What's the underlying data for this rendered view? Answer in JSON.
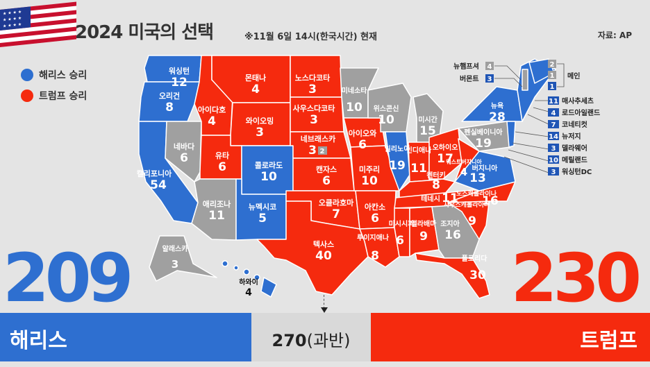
{
  "title": "2024 미국의 선택",
  "subtitle": "※11월 6일 14시(한국시간) 현재",
  "source": "자료: AP",
  "legend": {
    "harris": "해리스 승리",
    "trump": "트럼프 승리"
  },
  "harris": {
    "name": "해리스",
    "total": "209"
  },
  "trump": {
    "name": "트럼프",
    "total": "230"
  },
  "threshold": {
    "value": "270",
    "label": "(과반)"
  },
  "colors": {
    "harris": "#2e6fd0",
    "trump": "#f52a0e",
    "undecided": "#a0a0a0"
  },
  "states": [
    {
      "name": "워싱턴",
      "votes": "12",
      "winner": "harris"
    },
    {
      "name": "오리건",
      "votes": "8",
      "winner": "harris"
    },
    {
      "name": "캘리포니아",
      "votes": "54",
      "winner": "harris"
    },
    {
      "name": "네바다",
      "votes": "6",
      "winner": "undecided"
    },
    {
      "name": "아이다호",
      "votes": "4",
      "winner": "trump"
    },
    {
      "name": "몬태나",
      "votes": "4",
      "winner": "trump"
    },
    {
      "name": "와이오밍",
      "votes": "3",
      "winner": "trump"
    },
    {
      "name": "유타",
      "votes": "6",
      "winner": "trump"
    },
    {
      "name": "콜로라도",
      "votes": "10",
      "winner": "harris"
    },
    {
      "name": "애리조나",
      "votes": "11",
      "winner": "undecided"
    },
    {
      "name": "뉴멕시코",
      "votes": "5",
      "winner": "harris"
    },
    {
      "name": "노스다코타",
      "votes": "3",
      "winner": "trump"
    },
    {
      "name": "사우스다코타",
      "votes": "3",
      "winner": "trump"
    },
    {
      "name": "네브래스카",
      "votes": "3",
      "extra": "2",
      "winner": "trump"
    },
    {
      "name": "캔자스",
      "votes": "6",
      "winner": "trump"
    },
    {
      "name": "오클라호마",
      "votes": "7",
      "winner": "trump"
    },
    {
      "name": "텍사스",
      "votes": "40",
      "winner": "trump"
    },
    {
      "name": "미네소타",
      "votes": "10",
      "winner": "undecided"
    },
    {
      "name": "아이오와",
      "votes": "6",
      "winner": "trump"
    },
    {
      "name": "미주리",
      "votes": "10",
      "winner": "trump"
    },
    {
      "name": "아칸소",
      "votes": "6",
      "winner": "trump"
    },
    {
      "name": "루이지애나",
      "votes": "8",
      "winner": "trump"
    },
    {
      "name": "위스콘신",
      "votes": "10",
      "winner": "undecided"
    },
    {
      "name": "일리노이",
      "votes": "19",
      "winner": "harris"
    },
    {
      "name": "미시간",
      "votes": "15",
      "winner": "undecided"
    },
    {
      "name": "인디애나",
      "votes": "11",
      "winner": "trump"
    },
    {
      "name": "오하이오",
      "votes": "17",
      "winner": "trump"
    },
    {
      "name": "켄터키",
      "votes": "8",
      "winner": "trump"
    },
    {
      "name": "테네시",
      "votes": "11",
      "winner": "trump"
    },
    {
      "name": "미시시피",
      "votes": "6",
      "winner": "trump"
    },
    {
      "name": "앨라배마",
      "votes": "9",
      "winner": "trump"
    },
    {
      "name": "조지아",
      "votes": "16",
      "winner": "undecided"
    },
    {
      "name": "플로리다",
      "votes": "30",
      "winner": "trump"
    },
    {
      "name": "사우스캐롤라이나",
      "votes": "9",
      "winner": "trump"
    },
    {
      "name": "노스캐롤라이나",
      "votes": "16",
      "winner": "trump"
    },
    {
      "name": "버지니아",
      "votes": "13",
      "winner": "harris"
    },
    {
      "name": "웨스트버지니아",
      "votes": "4",
      "winner": "trump"
    },
    {
      "name": "펜실베이니아",
      "votes": "19",
      "winner": "undecided"
    },
    {
      "name": "뉴욕",
      "votes": "28",
      "winner": "harris"
    },
    {
      "name": "알래스카",
      "votes": "3",
      "winner": "undecided"
    },
    {
      "name": "하와이",
      "votes": "4",
      "winner": "harris"
    }
  ],
  "northeast": [
    {
      "name": "뉴햄프셔",
      "votes": "4",
      "winner": "undecided"
    },
    {
      "name": "버몬트",
      "votes": "3",
      "winner": "harris"
    },
    {
      "name": "메인",
      "votes": [
        "2",
        "1",
        "1"
      ]
    },
    {
      "name": "매사추세츠",
      "votes": "11",
      "winner": "harris"
    },
    {
      "name": "로드아일랜드",
      "votes": "4",
      "winner": "harris"
    },
    {
      "name": "코네티컷",
      "votes": "7",
      "winner": "harris"
    },
    {
      "name": "뉴저지",
      "votes": "14",
      "winner": "harris"
    },
    {
      "name": "델라웨어",
      "votes": "3",
      "winner": "harris"
    },
    {
      "name": "메릴랜드",
      "votes": "10",
      "winner": "harris"
    },
    {
      "name": "워싱턴DC",
      "votes": "3",
      "winner": "harris"
    }
  ]
}
